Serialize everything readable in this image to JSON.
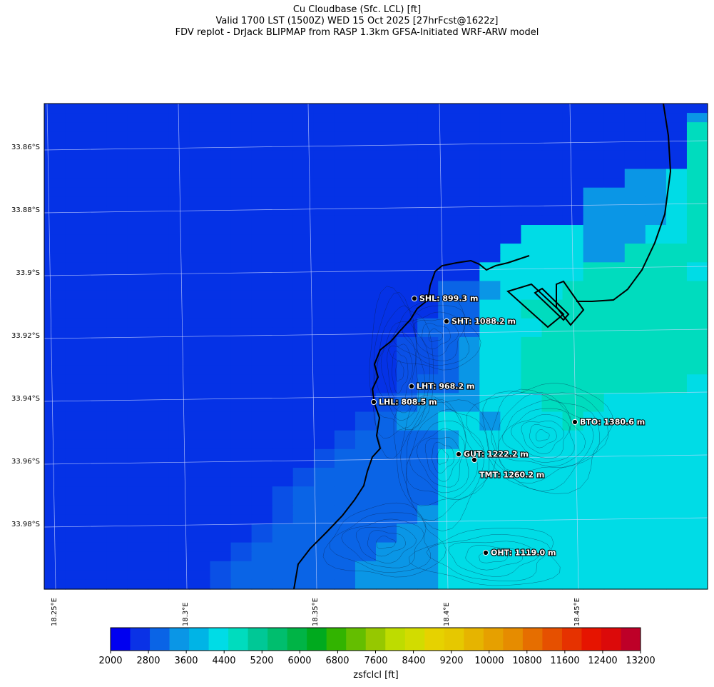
{
  "title": {
    "line1": "Cu Cloudbase (Sfc. LCL) [ft]",
    "line2": "Valid 1700 LST (1500Z) WED 15 Oct 2025 [27hrFcst@1622z]",
    "line3": "FDV replot - DrJack BLIPMAP from RASP 1.3km GFSA-Initiated WRF-ARW model"
  },
  "lat_labels": [
    "33.86°S",
    "33.88°S",
    "33.9°S",
    "33.92°S",
    "33.94°S",
    "33.96°S",
    "33.98°S"
  ],
  "lon_labels": [
    "18.25°E",
    "18.3°E",
    "18.35°E",
    "18.4°E",
    "18.45°E"
  ],
  "stations": [
    {
      "label": "SHL: 899.3 m"
    },
    {
      "label": "SHT: 1088.2 m"
    },
    {
      "label": "LHT: 968.2 m"
    },
    {
      "label": "LHL: 808.5 m"
    },
    {
      "label": "BTO: 1380.6 m"
    },
    {
      "label": "GUT: 1222.2 m"
    },
    {
      "label": "TMT: 1260.2 m"
    },
    {
      "label": "OHT: 1119.0 m"
    }
  ],
  "colorbar": {
    "label": "zsfclcl [ft]",
    "ticks": [
      "2000",
      "2800",
      "3600",
      "4400",
      "5200",
      "6000",
      "6800",
      "7600",
      "8400",
      "9200",
      "10000",
      "10800",
      "11600",
      "12400",
      "13200"
    ],
    "colors": [
      "#0000f0",
      "#0a32e6",
      "#0a64e6",
      "#0a96e6",
      "#00b4e6",
      "#00dce6",
      "#00dcbe",
      "#00c896",
      "#00be6e",
      "#00b446",
      "#00aa1e",
      "#32b400",
      "#64be00",
      "#96c800",
      "#bedc00",
      "#d2dc00",
      "#e6d200",
      "#e6c800",
      "#e6b400",
      "#e6a000",
      "#e68c00",
      "#e66e00",
      "#e65000",
      "#e63200",
      "#e61400",
      "#dc0a0a",
      "#be0028"
    ]
  },
  "field_colors": {
    "c2400": "#0532e6",
    "c2800": "#0a50e6",
    "c3200": "#0a64e6",
    "c3600": "#0a96e6",
    "c4000": "#00b4e6",
    "c4400": "#00dce6",
    "c4800": "#00dcbe",
    "c5200": "#00d0a0"
  },
  "field_grid": [
    "00000000000000000000000000000000",
    "00000000000000000000000000000003",
    "00000000000000000000000000000005",
    "00000000000000000000000000000005",
    "00000000000000000000000000000005",
    "00000000000000000000000000000005",
    "00000000000000000000000000000005",
    "00000000000000000000000000003345",
    "00000000000000000000000000003345",
    "00000000000000000000000000333345",
    "00000000000000000000000000333345",
    "00000000000000000000000000333345",
    "00000000000000000000000000333345",
    "00000000000000000000000444333445",
    "00000000000000000000000444333445",
    "00000000000000000000004444335555",
    "00000000000000000000004444335555",
    "00000000000000000000044444555554",
    "00000000000000000000044444555554",
    "00000000000000000002234445555555",
    "00000000000000000002234445555555",
    "00000000000000000002244555555555",
    "00000000000000000002244555555555",
    "00000000000000000022244455555555",
    "00000000000000000022244455555555",
    "00000000000000000112344555555555",
    "00000000000000000112344555555555",
    "00000000000000000112344555555555",
    "00000000000000000112344555555555",
    "00000000000000000122344555555554",
    "00000000000000000122344555555554",
    "00000000000000001233344455544444",
    "00000000000000001233344455544444",
    "00000000000000012334434445444444",
    "00000000000000012334434445444444",
    "00000000000000122223444444444444",
    "00000000000000122223444444444444",
    "00000000000001222224444444444444",
    "00000000000001222224444444444444",
    "00000000000012222224444444444444",
    "00000000000012222224444444444444",
    "00000000000122222224444444444444",
    "00000000000122222224444444444444",
    "00000000000122222234444444444444",
    "00000000000122222234444444444444",
    "00000000001222222334444444444444",
    "00000000001222222334444444444444",
    "00000000012222223334444444444444",
    "00000000012222223334444444444444",
    "00000000122222233334444444444444",
    "00000000122222233334444444444444",
    "00000000122222233334444444444444"
  ]
}
